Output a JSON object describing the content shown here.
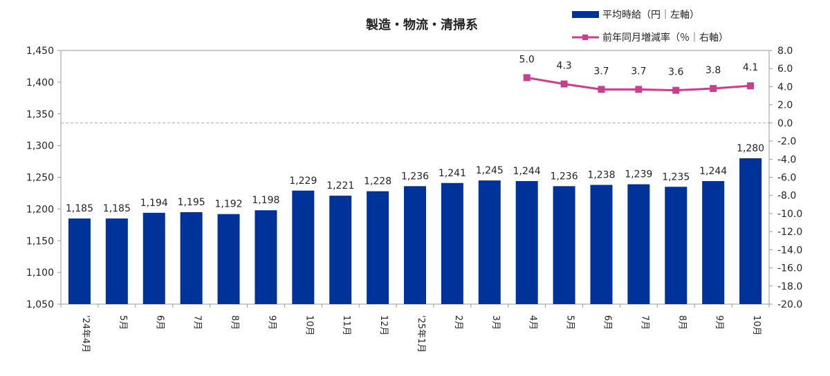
{
  "chart_data": {
    "type": "bar+line",
    "title": "製造・物流・清掃系",
    "categories": [
      "'24年4月",
      "5月",
      "6月",
      "7月",
      "8月",
      "9月",
      "10月",
      "11月",
      "12月",
      "'25年1月",
      "2月",
      "3月",
      "4月",
      "5月",
      "6月",
      "7月",
      "8月",
      "9月",
      "10月"
    ],
    "series": [
      {
        "name": "平均時給（円｜左軸）",
        "type": "bar",
        "axis": "left",
        "color": "#003399",
        "values": [
          1185,
          1185,
          1194,
          1195,
          1192,
          1198,
          1229,
          1221,
          1228,
          1236,
          1241,
          1245,
          1244,
          1236,
          1238,
          1239,
          1235,
          1244,
          1280
        ],
        "labels": [
          "1,185",
          "1,185",
          "1,194",
          "1,195",
          "1,192",
          "1,198",
          "1,229",
          "1,221",
          "1,228",
          "1,236",
          "1,241",
          "1,245",
          "1,244",
          "1,236",
          "1,238",
          "1,239",
          "1,235",
          "1,244",
          "1,280"
        ]
      },
      {
        "name": "前年同月増減率（％｜右軸）",
        "type": "line",
        "axis": "right",
        "color": "#cc3d8f",
        "values": [
          null,
          null,
          null,
          null,
          null,
          null,
          null,
          null,
          null,
          null,
          null,
          null,
          5.0,
          4.3,
          3.7,
          3.7,
          3.6,
          3.8,
          4.1
        ],
        "labels": [
          "",
          "",
          "",
          "",
          "",
          "",
          "",
          "",
          "",
          "",
          "",
          "",
          "5.0",
          "4.3",
          "3.7",
          "3.7",
          "3.6",
          "3.8",
          "4.1"
        ]
      }
    ],
    "y_left": {
      "min": 1050,
      "max": 1450,
      "step": 50,
      "ticks": [
        "1,050",
        "1,100",
        "1,150",
        "1,200",
        "1,250",
        "1,300",
        "1,350",
        "1,400",
        "1,450"
      ]
    },
    "y_right": {
      "min": -20,
      "max": 8,
      "step": 2,
      "ticks": [
        "-20.0",
        "-18.0",
        "-16.0",
        "-14.0",
        "-12.0",
        "-10.0",
        "-8.0",
        "-6.0",
        "-4.0",
        "-2.0",
        "0.0",
        "2.0",
        "4.0",
        "6.0",
        "8.0"
      ]
    },
    "zero_line": "dashed at 0.0 (right axis)",
    "grid": false,
    "legend": "top-right"
  }
}
